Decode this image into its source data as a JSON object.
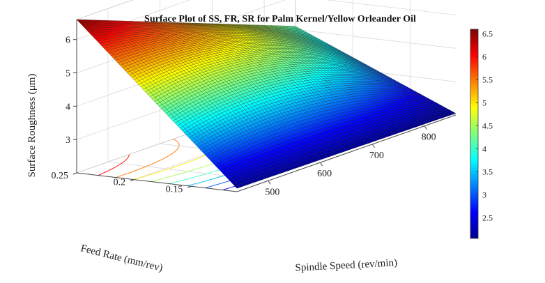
{
  "chart_data": {
    "type": "surface",
    "title": "Surface Plot of SS, FR, SR for Palm Kernel/Yellow Orleander Oil",
    "xlabel": "Spindle Speed (rev/min)",
    "ylabel": "Feed Rate (mm/rev)",
    "zlabel": "Surface Roughness (μm)",
    "x_ticks": [
      "500",
      "600",
      "700",
      "800"
    ],
    "y_ticks": [
      "0.15",
      "0.2",
      "0.25"
    ],
    "z_ticks": [
      "3",
      "4",
      "5",
      "6"
    ],
    "xlim": [
      440,
      860
    ],
    "ylim": [
      0.11,
      0.25
    ],
    "zlim": [
      2.0,
      6.6
    ],
    "clim": [
      2.05,
      6.6
    ],
    "colorbar_ticks": [
      "6.5",
      "6",
      "5.5",
      "5",
      "4.5",
      "4",
      "3.5",
      "3",
      "2.5"
    ],
    "colormap": "jet",
    "corner_values": [
      {
        "spindle_speed": 440,
        "feed_rate": 0.25,
        "surface_roughness": 6.6
      },
      {
        "spindle_speed": 440,
        "feed_rate": 0.11,
        "surface_roughness": 2.1
      },
      {
        "spindle_speed": 860,
        "feed_rate": 0.25,
        "surface_roughness": 4.1
      },
      {
        "spindle_speed": 860,
        "feed_rate": 0.11,
        "surface_roughness": 2.05
      }
    ],
    "ridge_value": 4.6
  },
  "colors": {
    "axis": "#444444",
    "grid": "#d9d9d9",
    "mesh": "#1a1a1a"
  }
}
